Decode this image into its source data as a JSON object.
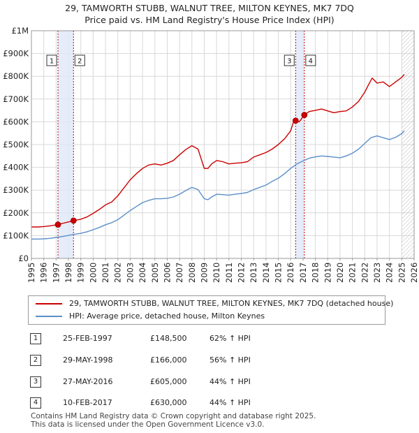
{
  "title_line1": "29, TAMWORTH STUBB, WALNUT TREE, MILTON KEYNES, MK7 7DQ",
  "title_line2": "Price paid vs. HM Land Registry's House Price Index (HPI)",
  "colors": {
    "property": "#cc0000",
    "hpi": "#5b8fc9",
    "grid": "#d8d8d8",
    "shade": "#dde8f7",
    "vline": "#cc0000"
  },
  "legend": [
    {
      "label": "29, TAMWORTH STUBB, WALNUT TREE, MILTON KEYNES, MK7 7DQ (detached house)",
      "color": "#cc0000"
    },
    {
      "label": "HPI: Average price, detached house, Milton Keynes",
      "color": "#5b8fc9"
    }
  ],
  "transactions": [
    {
      "num": "1",
      "date": "25-FEB-1997",
      "price": "£148,500",
      "hpi": "62% ↑ HPI"
    },
    {
      "num": "2",
      "date": "29-MAY-1998",
      "price": "£166,000",
      "hpi": "56% ↑ HPI"
    },
    {
      "num": "3",
      "date": "27-MAY-2016",
      "price": "£605,000",
      "hpi": "44% ↑ HPI"
    },
    {
      "num": "4",
      "date": "10-FEB-2017",
      "price": "£630,000",
      "hpi": "44% ↑ HPI"
    }
  ],
  "footer_line1": "Contains HM Land Registry data © Crown copyright and database right 2025.",
  "footer_line2": "This data is licensed under the Open Government Licence v3.0.",
  "chart_data": {
    "type": "line",
    "title": "29, TAMWORTH STUBB, WALNUT TREE, MILTON KEYNES, MK7 7DQ",
    "subtitle": "Price paid vs. HM Land Registry's House Price Index (HPI)",
    "xlabel": "",
    "ylabel": "",
    "xlim": [
      1995,
      2026
    ],
    "ylim": [
      0,
      1000000
    ],
    "x_ticks": [
      1995,
      1996,
      1997,
      1998,
      1999,
      2000,
      2001,
      2002,
      2003,
      2004,
      2005,
      2006,
      2007,
      2008,
      2009,
      2010,
      2011,
      2012,
      2013,
      2014,
      2015,
      2016,
      2017,
      2018,
      2019,
      2020,
      2021,
      2022,
      2023,
      2024,
      2025,
      2026
    ],
    "y_ticks": [
      {
        "value": 0,
        "label": "£0"
      },
      {
        "value": 100000,
        "label": "£100K"
      },
      {
        "value": 200000,
        "label": "£200K"
      },
      {
        "value": 300000,
        "label": "£300K"
      },
      {
        "value": 400000,
        "label": "£400K"
      },
      {
        "value": 500000,
        "label": "£500K"
      },
      {
        "value": 600000,
        "label": "£600K"
      },
      {
        "value": 700000,
        "label": "£700K"
      },
      {
        "value": 800000,
        "label": "£800K"
      },
      {
        "value": 900000,
        "label": "£900K"
      },
      {
        "value": 1000000,
        "label": "£1M"
      }
    ],
    "grid": true,
    "shaded_ranges": [
      [
        1997.15,
        1998.41
      ],
      [
        2016.4,
        2017.11
      ]
    ],
    "hatched_from": 2025.0,
    "series": [
      {
        "name": "29, TAMWORTH STUBB, WALNUT TREE, MILTON KEYNES, MK7 7DQ (detached house)",
        "color": "#cc0000",
        "x": [
          1995.0,
          1995.5,
          1996.0,
          1996.5,
          1997.15,
          1997.6,
          1998.0,
          1998.41,
          1999.0,
          1999.5,
          2000.0,
          2000.5,
          2001.0,
          2001.5,
          2002.0,
          2002.5,
          2003.0,
          2003.5,
          2004.0,
          2004.5,
          2005.0,
          2005.5,
          2006.0,
          2006.5,
          2007.0,
          2007.5,
          2008.0,
          2008.5,
          2009.0,
          2009.3,
          2009.6,
          2010.0,
          2010.5,
          2011.0,
          2011.5,
          2012.0,
          2012.5,
          2013.0,
          2013.5,
          2014.0,
          2014.5,
          2015.0,
          2015.5,
          2016.0,
          2016.2,
          2016.4,
          2016.7,
          2017.11,
          2017.5,
          2018.0,
          2018.5,
          2019.0,
          2019.5,
          2020.0,
          2020.5,
          2021.0,
          2021.5,
          2022.0,
          2022.3,
          2022.6,
          2023.0,
          2023.5,
          2024.0,
          2024.5,
          2025.0,
          2025.2
        ],
        "y": [
          138000,
          138000,
          140000,
          143000,
          148500,
          155000,
          160000,
          166000,
          172000,
          182000,
          198000,
          215000,
          235000,
          248000,
          275000,
          310000,
          345000,
          372000,
          395000,
          410000,
          415000,
          410000,
          418000,
          430000,
          455000,
          478000,
          495000,
          480000,
          395000,
          395000,
          415000,
          430000,
          425000,
          415000,
          418000,
          420000,
          425000,
          445000,
          455000,
          465000,
          480000,
          500000,
          525000,
          560000,
          595000,
          605000,
          600000,
          630000,
          645000,
          650000,
          656000,
          648000,
          640000,
          645000,
          648000,
          665000,
          690000,
          730000,
          762000,
          792000,
          770000,
          775000,
          755000,
          775000,
          795000,
          808000
        ]
      },
      {
        "name": "HPI: Average price, detached house, Milton Keynes",
        "color": "#5b8fc9",
        "x": [
          1995.0,
          1995.5,
          1996.0,
          1996.5,
          1997.0,
          1997.5,
          1998.0,
          1998.5,
          1999.0,
          1999.5,
          2000.0,
          2000.5,
          2001.0,
          2001.5,
          2002.0,
          2002.5,
          2003.0,
          2003.5,
          2004.0,
          2004.5,
          2005.0,
          2005.5,
          2006.0,
          2006.5,
          2007.0,
          2007.5,
          2008.0,
          2008.5,
          2009.0,
          2009.3,
          2009.6,
          2010.0,
          2010.5,
          2011.0,
          2011.5,
          2012.0,
          2012.5,
          2013.0,
          2013.5,
          2014.0,
          2014.5,
          2015.0,
          2015.5,
          2016.0,
          2016.5,
          2017.0,
          2017.5,
          2018.0,
          2018.5,
          2019.0,
          2019.5,
          2020.0,
          2020.5,
          2021.0,
          2021.5,
          2022.0,
          2022.5,
          2023.0,
          2023.5,
          2024.0,
          2024.5,
          2025.0,
          2025.2
        ],
        "y": [
          85000,
          85000,
          86000,
          88000,
          92000,
          96000,
          101000,
          106000,
          110000,
          117000,
          126000,
          136000,
          148000,
          157000,
          170000,
          190000,
          210000,
          228000,
          245000,
          255000,
          262000,
          262000,
          264000,
          270000,
          282000,
          298000,
          312000,
          302000,
          262000,
          258000,
          270000,
          282000,
          280000,
          278000,
          282000,
          285000,
          290000,
          302000,
          312000,
          322000,
          338000,
          352000,
          372000,
          395000,
          415000,
          428000,
          440000,
          446000,
          450000,
          448000,
          445000,
          442000,
          450000,
          462000,
          480000,
          505000,
          530000,
          538000,
          530000,
          522000,
          532000,
          548000,
          560000
        ]
      }
    ],
    "transactions": [
      {
        "label": "1",
        "x": 1997.15,
        "y": 148500
      },
      {
        "label": "2",
        "x": 1998.41,
        "y": 166000
      },
      {
        "label": "3",
        "x": 2016.4,
        "y": 605000
      },
      {
        "label": "4",
        "x": 2017.11,
        "y": 630000
      }
    ]
  }
}
